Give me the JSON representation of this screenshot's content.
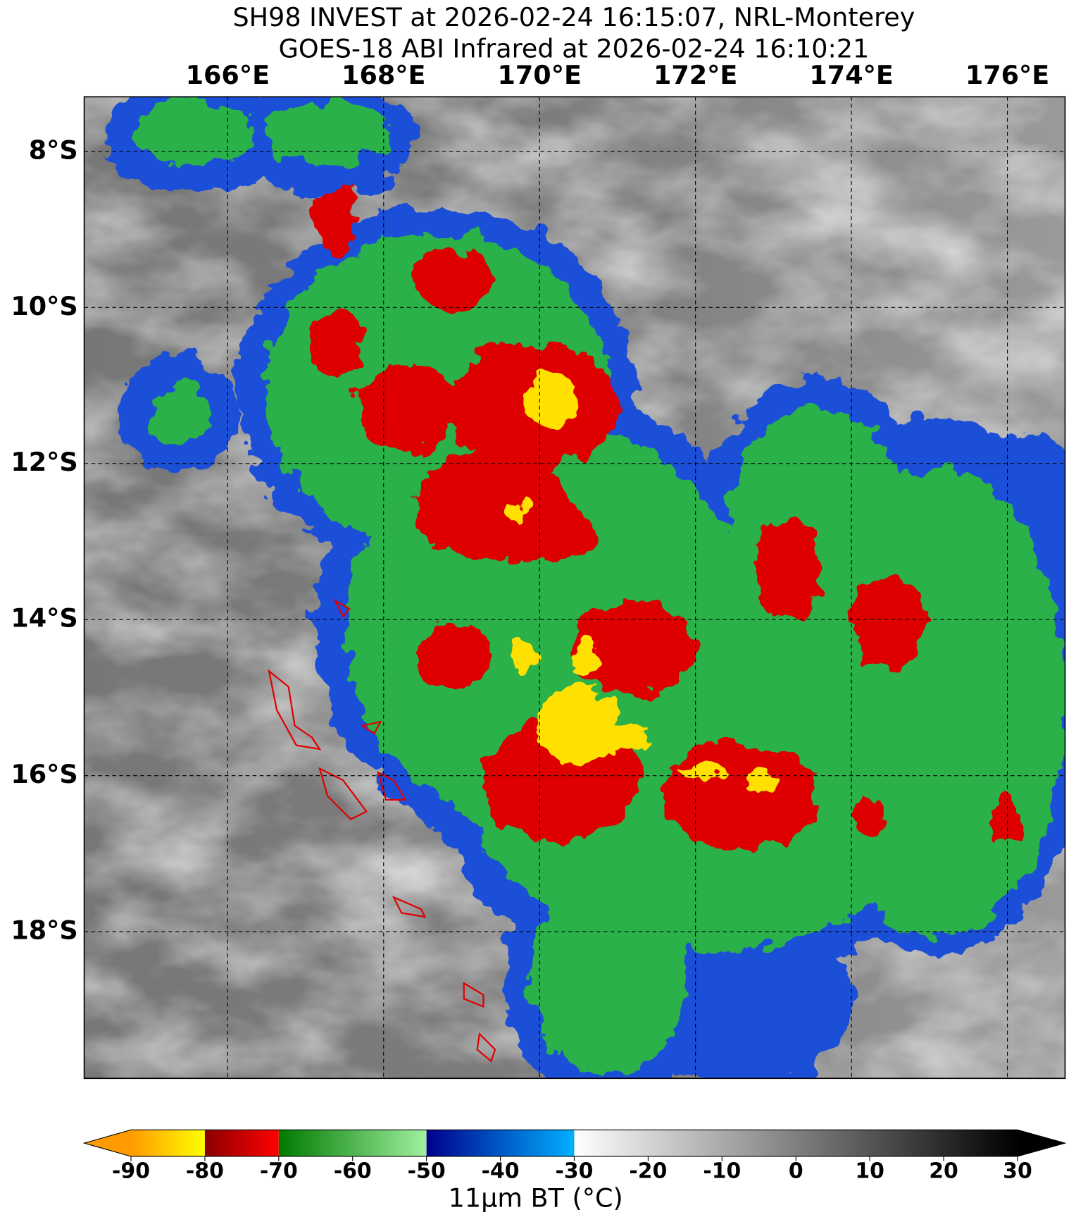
{
  "title": [
    "SH98 INVEST at 2026-02-24 16:15:07, NRL-Monterey",
    "GOES-18 ABI Infrared at 2026-02-24 16:10:21"
  ],
  "map": {
    "lonlim": [
      164.16,
      176.74
    ],
    "latlim": [
      -19.88,
      -7.3
    ],
    "lon_ticks": [
      {
        "value": 166,
        "label": "166°E"
      },
      {
        "value": 168,
        "label": "168°E"
      },
      {
        "value": 170,
        "label": "170°E"
      },
      {
        "value": 172,
        "label": "172°E"
      },
      {
        "value": 174,
        "label": "174°E"
      },
      {
        "value": 176,
        "label": "176°E"
      }
    ],
    "lat_ticks": [
      {
        "value": -8,
        "label": "8°S"
      },
      {
        "value": -10,
        "label": "10°S"
      },
      {
        "value": -12,
        "label": "12°S"
      },
      {
        "value": -14,
        "label": "14°S"
      },
      {
        "value": -16,
        "label": "16°S"
      },
      {
        "value": -18,
        "label": "18°S"
      }
    ]
  },
  "colorbar": {
    "label": "11μm BT (°C)",
    "lim": [
      -90,
      30
    ],
    "ticks": [
      -90,
      -80,
      -70,
      -60,
      -50,
      -40,
      -30,
      -20,
      -10,
      0,
      10,
      20,
      30
    ],
    "segments": [
      {
        "from": -90,
        "to": -80,
        "colors": [
          "#ff9a00",
          "#ffff00"
        ]
      },
      {
        "from": -80,
        "to": -70,
        "colors": [
          "#8b0000",
          "#ff0000"
        ]
      },
      {
        "from": -70,
        "to": -50,
        "colors": [
          "#007a00",
          "#a0f0a0"
        ]
      },
      {
        "from": -50,
        "to": -30,
        "colors": [
          "#00008b",
          "#00b0ff"
        ]
      },
      {
        "from": -30,
        "to": 30,
        "colors": [
          "#ffffff",
          "#000000"
        ]
      }
    ]
  }
}
